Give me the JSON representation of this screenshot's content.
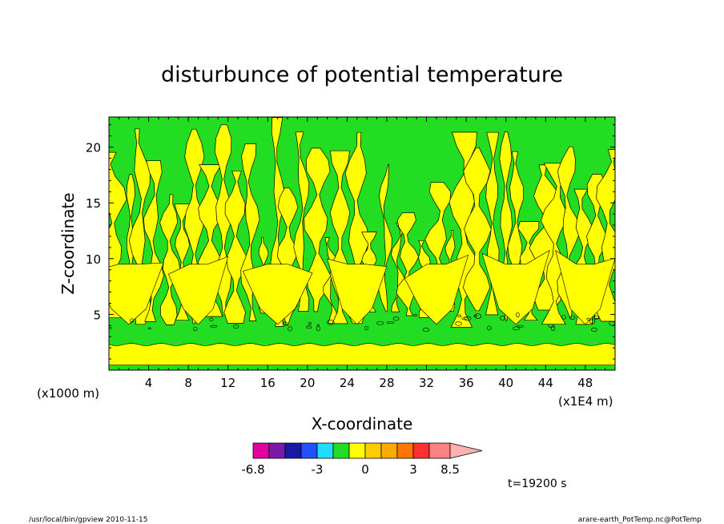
{
  "chart_data": {
    "type": "heatmap",
    "title": "disturbunce of potential temperature",
    "xlabel": "X-coordinate",
    "ylabel": "Z-coordinate",
    "x_unit": "(x1E4 m)",
    "y_unit": "(x1000 m)",
    "xlim": [
      0,
      51
    ],
    "ylim": [
      0,
      22.7
    ],
    "x_ticks": [
      4,
      8,
      12,
      16,
      20,
      24,
      28,
      32,
      36,
      40,
      44,
      48
    ],
    "x_tick_labels": [
      "4",
      "8",
      "12",
      "16",
      "20",
      "24",
      "28",
      "32",
      "36",
      "40",
      "44",
      "48"
    ],
    "y_ticks": [
      5,
      10,
      15,
      20
    ],
    "y_tick_labels": [
      "5",
      "10",
      "15",
      "20"
    ],
    "grid": false,
    "colorbar": {
      "levels": [
        -6.8,
        -6,
        -5,
        -4,
        -3,
        -2,
        -1,
        0,
        1,
        2,
        3,
        4,
        5,
        8.5
      ],
      "colors": [
        "#e2009f",
        "#7a1aa8",
        "#1a1aa8",
        "#2050ff",
        "#22ddff",
        "#22dd22",
        "#ffff00",
        "#ffcc00",
        "#ffaa00",
        "#ff7700",
        "#ff3030",
        "#ff8080",
        "#ffb0b0"
      ],
      "tick_labels": [
        "-6.8",
        "-3",
        "0",
        "3",
        "8.5"
      ],
      "tick_values": [
        -6.8,
        -3,
        0,
        3,
        8.5
      ]
    },
    "field_description_colors": {
      "positive_small": "#ffff00",
      "negative_small": "#22dd22",
      "contour_line": "#000000"
    },
    "annotation": "t=19200 s"
  },
  "footer": {
    "left": "/usr/local/bin/gpview  2010-11-15",
    "right": "arare-earth_PotTemp.nc@PotTemp"
  }
}
